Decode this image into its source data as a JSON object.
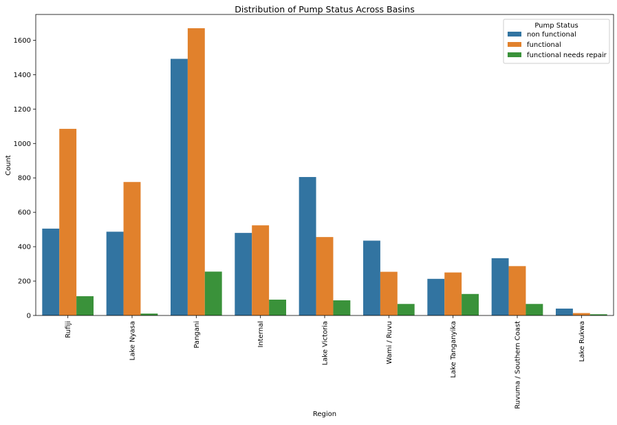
{
  "chart_data": {
    "type": "bar",
    "title": "Distribution of Pump Status Across Basins",
    "xlabel": "Region",
    "ylabel": "Count",
    "ylim": [
      0,
      1750
    ],
    "yticks": [
      0,
      200,
      400,
      600,
      800,
      1000,
      1200,
      1400,
      1600
    ],
    "categories": [
      "Rufiji",
      "Lake Nyasa",
      "Pangani",
      "Internal",
      "Lake Victoria",
      "Wami / Ruvu",
      "Lake Tanganyika",
      "Ruvuma / Southern Coast",
      "Lake Rukwa"
    ],
    "series": [
      {
        "name": "non functional",
        "color": "#3274a1",
        "values": [
          505,
          487,
          1492,
          480,
          805,
          435,
          213,
          333,
          40
        ]
      },
      {
        "name": "functional",
        "color": "#e1812c",
        "values": [
          1085,
          776,
          1670,
          524,
          456,
          254,
          250,
          287,
          14
        ]
      },
      {
        "name": "functional needs repair",
        "color": "#3a923a",
        "values": [
          112,
          11,
          255,
          92,
          88,
          67,
          125,
          67,
          7
        ]
      }
    ],
    "legend": {
      "title": "Pump Status",
      "position": "top-right"
    },
    "grid": false
  }
}
